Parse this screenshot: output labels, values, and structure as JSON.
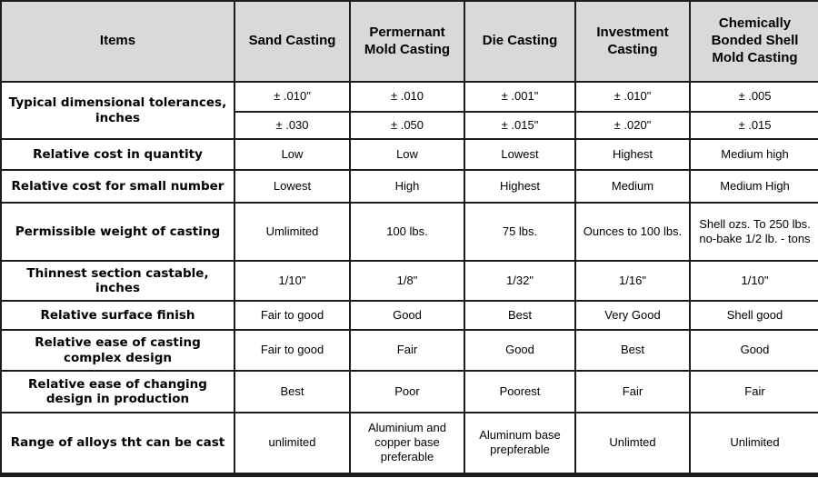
{
  "colors": {
    "header_bg": "#d9d9d9",
    "border": "#1c1c1c",
    "cell_bg": "#ffffff",
    "text": "#000000"
  },
  "chart_data": {
    "type": "table",
    "title": "",
    "columns": [
      "Items",
      "Sand Casting",
      "Permernant Mold Casting",
      "Die Casting",
      "Investment Casting",
      "Chemically Bonded Shell Mold Casting"
    ],
    "rows": [
      {
        "item": "Typical dimensional tolerances, inches",
        "item_rowspan": 2,
        "values": [
          "± .010\"",
          "± .010",
          "± .001\"",
          "± .010\"",
          "± .005"
        ]
      },
      {
        "item": null,
        "values": [
          "± .030",
          "± .050",
          "± .015\"",
          "± .020\"",
          "± .015"
        ]
      },
      {
        "item": "Relative cost in quantity",
        "values": [
          "Low",
          "Low",
          "Lowest",
          "Highest",
          "Medium high"
        ]
      },
      {
        "item": "Relative cost for small number",
        "values": [
          "Lowest",
          "High",
          "Highest",
          "Medium",
          "Medium High"
        ]
      },
      {
        "item": "Permissible weight of casting",
        "values": [
          "Umlimited",
          "100 lbs.",
          "75 lbs.",
          "Ounces to 100 lbs.",
          "Shell ozs. To 250 lbs. no-bake 1/2 lb. - tons"
        ]
      },
      {
        "item": "Thinnest section castable, inches",
        "values": [
          "1/10\"",
          "1/8\"",
          "1/32\"",
          "1/16\"",
          "1/10\""
        ]
      },
      {
        "item": "Relative surface finish",
        "values": [
          "Fair to good",
          "Good",
          "Best",
          "Very Good",
          "Shell good"
        ]
      },
      {
        "item": "Relative ease of casting complex design",
        "values": [
          "Fair to good",
          "Fair",
          "Good",
          "Best",
          "Good"
        ]
      },
      {
        "item": "Relative ease of changing design in production",
        "values": [
          "Best",
          "Poor",
          "Poorest",
          "Fair",
          "Fair"
        ]
      },
      {
        "item": "Range of alloys tht can be cast",
        "values": [
          "unlimited",
          "Aluminium and copper base preferable",
          "Aluminum base prepferable",
          "Unlimted",
          "Unlimited"
        ]
      }
    ]
  }
}
